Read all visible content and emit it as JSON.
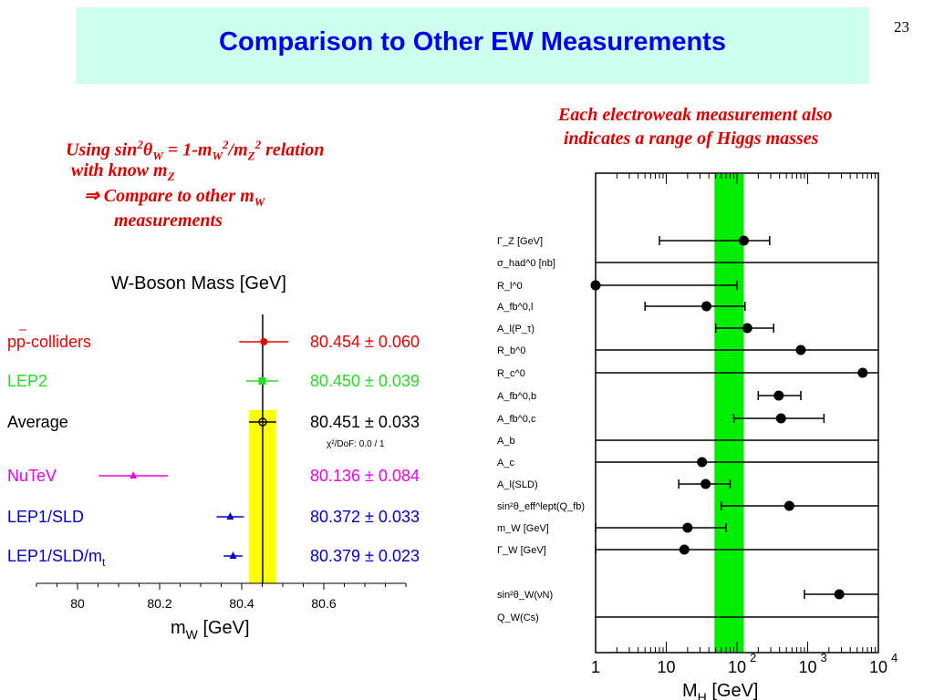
{
  "slide": {
    "title": "Comparison to Other EW Measurements",
    "page_number": "23",
    "left_note": {
      "line1_prefix": "Using sin",
      "line1_sup1": "2",
      "line1_theta": "θ",
      "line1_sub1": "W",
      "line1_mid": " = 1-m",
      "line1_sub2": "W",
      "line1_sup2": "2",
      "line1_slash": "/m",
      "line1_sub3": "Z",
      "line1_sup3": "2",
      "line1_suffix": " relation",
      "line2": "with know m",
      "line2_sub": "Z",
      "line3_arrow": "⇒",
      "line3": " Compare to other m",
      "line3_sub": "W",
      "line4": "measurements"
    },
    "right_note": {
      "line1": "Each electroweak measurement also",
      "line2": "indicates a range of Higgs masses"
    }
  },
  "chart_data": [
    {
      "type": "scatter",
      "title": "W-Boson Mass  [GeV]",
      "xlabel": "m",
      "xlabel_sub": "W",
      "xlabel_unit": "  [GeV]",
      "xlim": [
        79.9,
        80.8
      ],
      "xticks": [
        80,
        80.2,
        80.4,
        80.6
      ],
      "xtick_labels": [
        "80",
        "80.2",
        "80.4",
        "80.6"
      ],
      "band": {
        "center": 80.451,
        "error": 0.033,
        "color": "#ffff00"
      },
      "points": [
        {
          "label": "pp-colliders",
          "value": 80.454,
          "error": 0.06,
          "text": "80.454 ± 0.060",
          "color": "#ee0000",
          "marker": "circle"
        },
        {
          "label": "LEP2",
          "value": 80.45,
          "error": 0.039,
          "text": "80.450 ± 0.039",
          "color": "#22dd22",
          "marker": "square"
        },
        {
          "label": "Average",
          "value": 80.451,
          "error": 0.033,
          "text": "80.451 ± 0.033",
          "color": "#000000",
          "marker": "open-circle"
        },
        {
          "label": "NuTeV",
          "value": 80.136,
          "error": 0.084,
          "text": "80.136 ± 0.084",
          "color": "#ee00ee",
          "marker": "triangle"
        },
        {
          "label": "LEP1/SLD",
          "value": 80.372,
          "error": 0.033,
          "text": "80.372 ± 0.033",
          "color": "#0000cc",
          "marker": "triangle"
        },
        {
          "label": "LEP1/SLD/m",
          "label_sub": "t",
          "value": 80.379,
          "error": 0.023,
          "text": "80.379 ± 0.023",
          "color": "#0000cc",
          "marker": "triangle"
        }
      ],
      "annotation": "χ²/DoF: 0.0 / 1"
    },
    {
      "type": "scatter",
      "xlabel": "M",
      "xlabel_sub": "H",
      "xlabel_unit": "  [GeV]",
      "xscale": "log",
      "xlim": [
        1,
        10000
      ],
      "xtick_labels": [
        "1",
        "10",
        "10",
        "10",
        "10"
      ],
      "xtick_exponents": [
        "",
        "",
        "2",
        "3",
        "4"
      ],
      "band": {
        "range": [
          48,
          125
        ],
        "color": "#00ee00"
      },
      "points": [
        {
          "label": "Γ_Z [GeV]",
          "center": 125,
          "low": 8,
          "high": 290,
          "to_edge": false
        },
        {
          "label": "σ_had^0 [nb]",
          "to_edge": true
        },
        {
          "label": "R_l^0",
          "center": 1,
          "high": 100,
          "to_edge": false
        },
        {
          "label": "A_fb^0,l",
          "center": 37,
          "low": 5,
          "high": 130,
          "to_edge": false
        },
        {
          "label": "A_l(P_τ)",
          "center": 140,
          "low": 50,
          "high": 330,
          "to_edge": false
        },
        {
          "label": "R_b^0",
          "center": 800,
          "to_edge": true
        },
        {
          "label": "R_c^0",
          "center": 6000,
          "to_edge": true
        },
        {
          "label": "A_fb^0,b",
          "center": 390,
          "low": 200,
          "high": 800,
          "to_edge": false
        },
        {
          "label": "A_fb^0,c",
          "center": 420,
          "low": 90,
          "high": 1700,
          "to_edge": false
        },
        {
          "label": "A_b",
          "to_edge": true
        },
        {
          "label": "A_c",
          "center": 32,
          "to_edge": true
        },
        {
          "label": "A_l(SLD)",
          "center": 36,
          "low": 15,
          "high": 80,
          "to_edge": false
        },
        {
          "label": "sin²θ_eff^lept(Q_fb)",
          "center": 550,
          "low": 60,
          "to_edge": true
        },
        {
          "label": "m_W [GeV]",
          "center": 20,
          "low": 1,
          "high": 70,
          "to_edge": false
        },
        {
          "label": "Γ_W [GeV]",
          "center": 18,
          "low": 1,
          "to_edge": true
        },
        {
          "label": "sin²θ_W(νN)",
          "center": 2800,
          "low": 900,
          "to_edge": true
        },
        {
          "label": "Q_W(Cs)",
          "to_edge": true
        }
      ]
    }
  ]
}
